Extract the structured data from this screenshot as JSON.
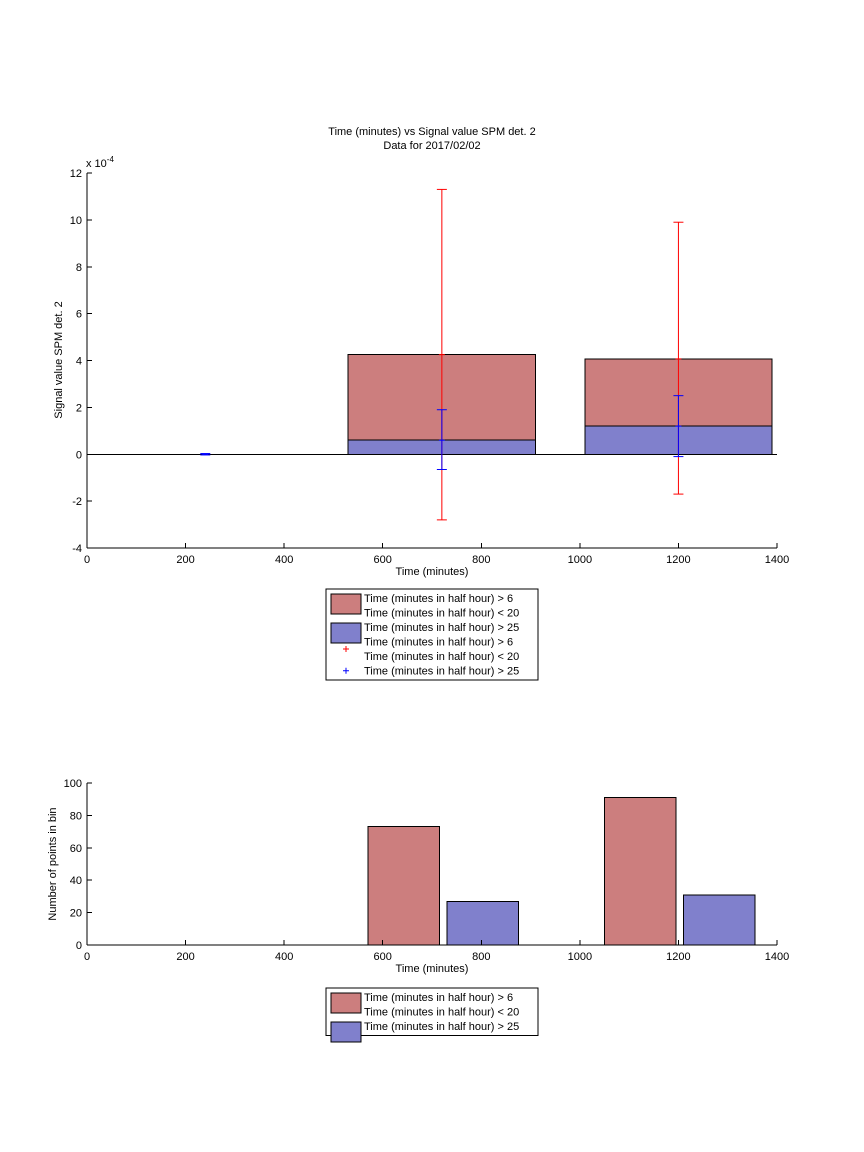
{
  "chart_data": [
    {
      "type": "bar",
      "title": "Time (minutes) vs Signal value SPM det. 2",
      "subtitle": "Data for 2017/02/02",
      "xlabel": "Time (minutes)",
      "ylabel": "Signal value SPM det. 2",
      "y_exponent": "x 10",
      "y_exponent_power": "-4",
      "xlim": [
        0,
        1400
      ],
      "ylim": [
        -4,
        12
      ],
      "xticks": [
        0,
        200,
        400,
        600,
        800,
        1000,
        1200,
        1400
      ],
      "yticks": [
        -4,
        -2,
        0,
        2,
        4,
        6,
        8,
        10,
        12
      ],
      "grid": false,
      "series": [
        {
          "name": "Time (minutes in half hour) > 6\nTime (minutes in half hour) < 20",
          "color": "#cc7e7e",
          "bars": [
            {
              "x0": 530,
              "x1": 910,
              "value": 4.25
            },
            {
              "x0": 1010,
              "x1": 1390,
              "value": 4.07
            }
          ]
        },
        {
          "name": "Time (minutes in half hour) > 25",
          "color": "#8080cc",
          "bars": [
            {
              "x0": 530,
              "x1": 910,
              "value": 0.6
            },
            {
              "x0": 1010,
              "x1": 1390,
              "value": 1.2
            }
          ]
        }
      ],
      "errorbars": [
        {
          "series": 0,
          "color": "#ff0000",
          "points": [
            {
              "x": 720,
              "y": 4.25,
              "low": -2.8,
              "high": 11.3
            },
            {
              "x": 1200,
              "y": 4.07,
              "low": -1.7,
              "high": 9.9
            }
          ]
        },
        {
          "series": 1,
          "color": "#0000ff",
          "points": [
            {
              "x": 240,
              "y": 0,
              "low": -0.03,
              "high": 0.03
            },
            {
              "x": 720,
              "y": 0.6,
              "low": -0.65,
              "high": 1.9
            },
            {
              "x": 1200,
              "y": 1.2,
              "low": -0.1,
              "high": 2.5
            }
          ]
        }
      ],
      "legend": {
        "placement": "below",
        "entries": [
          {
            "kind": "patch",
            "color": "#cc7e7e",
            "lines": [
              "Time (minutes in half hour) > 6",
              "Time (minutes in half hour) < 20"
            ]
          },
          {
            "kind": "patch",
            "color": "#8080cc",
            "lines": [
              "Time (minutes in half hour) > 25"
            ]
          },
          {
            "kind": "marker",
            "color": "#ff0000",
            "lines": [
              "Time (minutes in half hour) > 6",
              "Time (minutes in half hour) < 20"
            ]
          },
          {
            "kind": "marker",
            "color": "#0000ff",
            "lines": [
              "Time (minutes in half hour) > 25"
            ]
          }
        ]
      }
    },
    {
      "type": "bar",
      "title": "",
      "xlabel": "Time (minutes)",
      "ylabel": "Number of points in bin",
      "xlim": [
        0,
        1400
      ],
      "ylim": [
        0,
        100
      ],
      "xticks": [
        0,
        200,
        400,
        600,
        800,
        1000,
        1200,
        1400
      ],
      "yticks": [
        0,
        20,
        40,
        60,
        80,
        100
      ],
      "grid": false,
      "series": [
        {
          "name": "Time (minutes in half hour) > 6\nTime (minutes in half hour) < 20",
          "color": "#cc7e7e",
          "bars": [
            {
              "x0": 570,
              "x1": 715,
              "value": 73
            },
            {
              "x0": 1050,
              "x1": 1195,
              "value": 91
            }
          ]
        },
        {
          "name": "Time (minutes in half hour) > 25",
          "color": "#8080cc",
          "bars": [
            {
              "x0": 730,
              "x1": 875,
              "value": 27
            },
            {
              "x0": 1210,
              "x1": 1355,
              "value": 31
            }
          ]
        }
      ],
      "legend": {
        "placement": "below",
        "entries": [
          {
            "kind": "patch",
            "color": "#cc7e7e",
            "lines": [
              "Time (minutes in half hour) > 6",
              "Time (minutes in half hour) < 20"
            ]
          },
          {
            "kind": "patch",
            "color": "#8080cc",
            "lines": [
              "Time (minutes in half hour) > 25"
            ]
          }
        ]
      }
    }
  ]
}
